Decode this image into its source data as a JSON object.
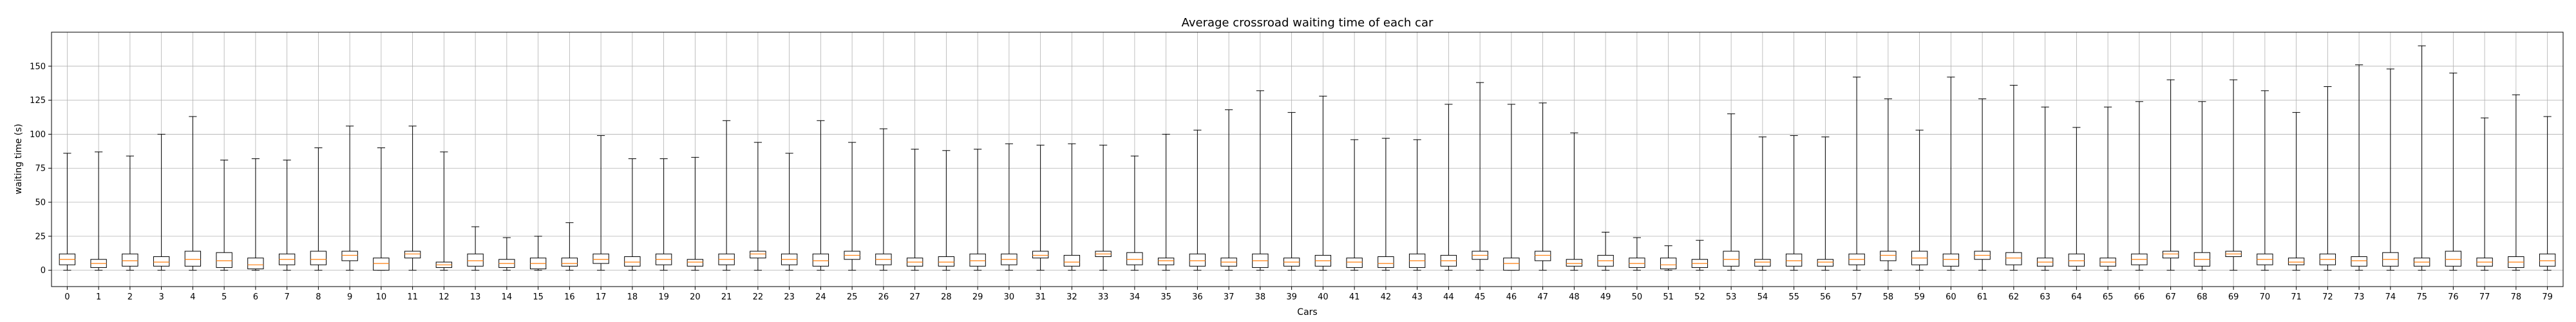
{
  "chart_data": {
    "type": "box",
    "title": "Average crossroad waiting time of each car",
    "xlabel": "Cars",
    "ylabel": "waiting time (s)",
    "ylim": [
      -12,
      175
    ],
    "yticks": [
      0,
      25,
      50,
      75,
      100,
      125,
      150
    ],
    "grid": true,
    "colors": {
      "box": "#000000",
      "median": "#ff7f0e",
      "grid": "#b0b0b0"
    },
    "categories": [
      "0",
      "1",
      "2",
      "3",
      "4",
      "5",
      "6",
      "7",
      "8",
      "9",
      "10",
      "11",
      "12",
      "13",
      "14",
      "15",
      "16",
      "17",
      "18",
      "19",
      "20",
      "21",
      "22",
      "23",
      "24",
      "25",
      "26",
      "27",
      "28",
      "29",
      "30",
      "31",
      "32",
      "33",
      "34",
      "35",
      "36",
      "37",
      "38",
      "39",
      "40",
      "41",
      "42",
      "43",
      "44",
      "45",
      "46",
      "47",
      "48",
      "49",
      "50",
      "51",
      "52",
      "53",
      "54",
      "55",
      "56",
      "57",
      "58",
      "59",
      "60",
      "61",
      "62",
      "63",
      "64",
      "65",
      "66",
      "67",
      "68",
      "69",
      "70",
      "71",
      "72",
      "73",
      "74",
      "75",
      "76",
      "77",
      "78",
      "79"
    ],
    "boxes": [
      {
        "whislo": 0,
        "q1": 4,
        "med": 8,
        "q3": 12,
        "whishi": 86
      },
      {
        "whislo": 0,
        "q1": 2,
        "med": 5,
        "q3": 8,
        "whishi": 87
      },
      {
        "whislo": 0,
        "q1": 3,
        "med": 7,
        "q3": 12,
        "whishi": 84
      },
      {
        "whislo": 0,
        "q1": 3,
        "med": 6,
        "q3": 10,
        "whishi": 100
      },
      {
        "whislo": 0,
        "q1": 3,
        "med": 8,
        "q3": 14,
        "whishi": 113
      },
      {
        "whislo": 0,
        "q1": 2,
        "med": 7,
        "q3": 13,
        "whishi": 81
      },
      {
        "whislo": 0,
        "q1": 1,
        "med": 4,
        "q3": 9,
        "whishi": 82
      },
      {
        "whislo": 0,
        "q1": 4,
        "med": 8,
        "q3": 12,
        "whishi": 81
      },
      {
        "whislo": 0,
        "q1": 4,
        "med": 8,
        "q3": 14,
        "whishi": 90
      },
      {
        "whislo": 0,
        "q1": 7,
        "med": 11,
        "q3": 14,
        "whishi": 106
      },
      {
        "whislo": 0,
        "q1": 0,
        "med": 5,
        "q3": 9,
        "whishi": 90
      },
      {
        "whislo": 0,
        "q1": 9,
        "med": 12,
        "q3": 14,
        "whishi": 106
      },
      {
        "whislo": 0,
        "q1": 2,
        "med": 4,
        "q3": 6,
        "whishi": 87
      },
      {
        "whislo": 0,
        "q1": 3,
        "med": 7,
        "q3": 12,
        "whishi": 32
      },
      {
        "whislo": 0,
        "q1": 2,
        "med": 5,
        "q3": 8,
        "whishi": 24
      },
      {
        "whislo": 0,
        "q1": 1,
        "med": 5,
        "q3": 9,
        "whishi": 25
      },
      {
        "whislo": 0,
        "q1": 3,
        "med": 5,
        "q3": 9,
        "whishi": 35
      },
      {
        "whislo": 0,
        "q1": 5,
        "med": 8,
        "q3": 12,
        "whishi": 99
      },
      {
        "whislo": 0,
        "q1": 3,
        "med": 6,
        "q3": 10,
        "whishi": 82
      },
      {
        "whislo": 0,
        "q1": 4,
        "med": 8,
        "q3": 12,
        "whishi": 82
      },
      {
        "whislo": 0,
        "q1": 3,
        "med": 6,
        "q3": 8,
        "whishi": 83
      },
      {
        "whislo": 0,
        "q1": 4,
        "med": 8,
        "q3": 12,
        "whishi": 110
      },
      {
        "whislo": 0,
        "q1": 9,
        "med": 12,
        "q3": 14,
        "whishi": 94
      },
      {
        "whislo": 0,
        "q1": 4,
        "med": 8,
        "q3": 12,
        "whishi": 86
      },
      {
        "whislo": 0,
        "q1": 3,
        "med": 7,
        "q3": 12,
        "whishi": 110
      },
      {
        "whislo": 0,
        "q1": 8,
        "med": 11,
        "q3": 14,
        "whishi": 94
      },
      {
        "whislo": 0,
        "q1": 4,
        "med": 8,
        "q3": 12,
        "whishi": 104
      },
      {
        "whislo": 0,
        "q1": 3,
        "med": 6,
        "q3": 9,
        "whishi": 89
      },
      {
        "whislo": 0,
        "q1": 3,
        "med": 6,
        "q3": 10,
        "whishi": 88
      },
      {
        "whislo": 0,
        "q1": 3,
        "med": 7,
        "q3": 12,
        "whishi": 89
      },
      {
        "whislo": 0,
        "q1": 4,
        "med": 8,
        "q3": 12,
        "whishi": 93
      },
      {
        "whislo": 0,
        "q1": 9,
        "med": 11,
        "q3": 14,
        "whishi": 92
      },
      {
        "whislo": 0,
        "q1": 3,
        "med": 6,
        "q3": 11,
        "whishi": 93
      },
      {
        "whislo": 0,
        "q1": 10,
        "med": 12,
        "q3": 14,
        "whishi": 92
      },
      {
        "whislo": 0,
        "q1": 4,
        "med": 8,
        "q3": 13,
        "whishi": 84
      },
      {
        "whislo": 0,
        "q1": 4,
        "med": 7,
        "q3": 9,
        "whishi": 100
      },
      {
        "whislo": 0,
        "q1": 3,
        "med": 7,
        "q3": 12,
        "whishi": 103
      },
      {
        "whislo": 0,
        "q1": 3,
        "med": 6,
        "q3": 9,
        "whishi": 118
      },
      {
        "whislo": 0,
        "q1": 2,
        "med": 7,
        "q3": 12,
        "whishi": 132
      },
      {
        "whislo": 0,
        "q1": 3,
        "med": 6,
        "q3": 9,
        "whishi": 116
      },
      {
        "whislo": 0,
        "q1": 3,
        "med": 7,
        "q3": 11,
        "whishi": 128
      },
      {
        "whislo": 0,
        "q1": 2,
        "med": 6,
        "q3": 9,
        "whishi": 96
      },
      {
        "whislo": 0,
        "q1": 2,
        "med": 5,
        "q3": 10,
        "whishi": 97
      },
      {
        "whislo": 0,
        "q1": 2,
        "med": 7,
        "q3": 12,
        "whishi": 96
      },
      {
        "whislo": 0,
        "q1": 3,
        "med": 7,
        "q3": 11,
        "whishi": 122
      },
      {
        "whislo": 0,
        "q1": 8,
        "med": 11,
        "q3": 14,
        "whishi": 138
      },
      {
        "whislo": 0,
        "q1": 0,
        "med": 5,
        "q3": 9,
        "whishi": 122
      },
      {
        "whislo": 0,
        "q1": 7,
        "med": 11,
        "q3": 14,
        "whishi": 123
      },
      {
        "whislo": 0,
        "q1": 3,
        "med": 5,
        "q3": 8,
        "whishi": 101
      },
      {
        "whislo": 0,
        "q1": 3,
        "med": 7,
        "q3": 11,
        "whishi": 28
      },
      {
        "whislo": 0,
        "q1": 2,
        "med": 5,
        "q3": 9,
        "whishi": 24
      },
      {
        "whislo": 0,
        "q1": 1,
        "med": 4,
        "q3": 9,
        "whishi": 18
      },
      {
        "whislo": 0,
        "q1": 2,
        "med": 5,
        "q3": 8,
        "whishi": 22
      },
      {
        "whislo": 0,
        "q1": 3,
        "med": 8,
        "q3": 14,
        "whishi": 115
      },
      {
        "whislo": 0,
        "q1": 3,
        "med": 6,
        "q3": 8,
        "whishi": 98
      },
      {
        "whislo": 0,
        "q1": 3,
        "med": 7,
        "q3": 12,
        "whishi": 99
      },
      {
        "whislo": 0,
        "q1": 3,
        "med": 6,
        "q3": 8,
        "whishi": 98
      },
      {
        "whislo": 0,
        "q1": 4,
        "med": 8,
        "q3": 12,
        "whishi": 142
      },
      {
        "whislo": 0,
        "q1": 7,
        "med": 11,
        "q3": 14,
        "whishi": 126
      },
      {
        "whislo": 0,
        "q1": 4,
        "med": 9,
        "q3": 14,
        "whishi": 103
      },
      {
        "whislo": 0,
        "q1": 3,
        "med": 8,
        "q3": 12,
        "whishi": 142
      },
      {
        "whislo": 0,
        "q1": 8,
        "med": 11,
        "q3": 14,
        "whishi": 126
      },
      {
        "whislo": 0,
        "q1": 4,
        "med": 9,
        "q3": 13,
        "whishi": 136
      },
      {
        "whislo": 0,
        "q1": 3,
        "med": 6,
        "q3": 9,
        "whishi": 120
      },
      {
        "whislo": 0,
        "q1": 3,
        "med": 7,
        "q3": 12,
        "whishi": 105
      },
      {
        "whislo": 0,
        "q1": 3,
        "med": 6,
        "q3": 9,
        "whishi": 120
      },
      {
        "whislo": 0,
        "q1": 4,
        "med": 8,
        "q3": 12,
        "whishi": 124
      },
      {
        "whislo": 0,
        "q1": 9,
        "med": 12,
        "q3": 14,
        "whishi": 140
      },
      {
        "whislo": 0,
        "q1": 3,
        "med": 8,
        "q3": 13,
        "whishi": 124
      },
      {
        "whislo": 0,
        "q1": 10,
        "med": 12,
        "q3": 14,
        "whishi": 140
      },
      {
        "whislo": 0,
        "q1": 4,
        "med": 8,
        "q3": 12,
        "whishi": 132
      },
      {
        "whislo": 0,
        "q1": 4,
        "med": 6,
        "q3": 9,
        "whishi": 116
      },
      {
        "whislo": 0,
        "q1": 4,
        "med": 8,
        "q3": 12,
        "whishi": 135
      },
      {
        "whislo": 0,
        "q1": 3,
        "med": 7,
        "q3": 10,
        "whishi": 151
      },
      {
        "whislo": 0,
        "q1": 3,
        "med": 8,
        "q3": 13,
        "whishi": 148
      },
      {
        "whislo": 0,
        "q1": 3,
        "med": 6,
        "q3": 9,
        "whishi": 165
      },
      {
        "whislo": 0,
        "q1": 3,
        "med": 8,
        "q3": 14,
        "whishi": 145
      },
      {
        "whislo": 0,
        "q1": 3,
        "med": 6,
        "q3": 9,
        "whishi": 112
      },
      {
        "whislo": 0,
        "q1": 2,
        "med": 6,
        "q3": 10,
        "whishi": 129
      },
      {
        "whislo": 0,
        "q1": 3,
        "med": 7,
        "q3": 12,
        "whishi": 113
      }
    ]
  }
}
